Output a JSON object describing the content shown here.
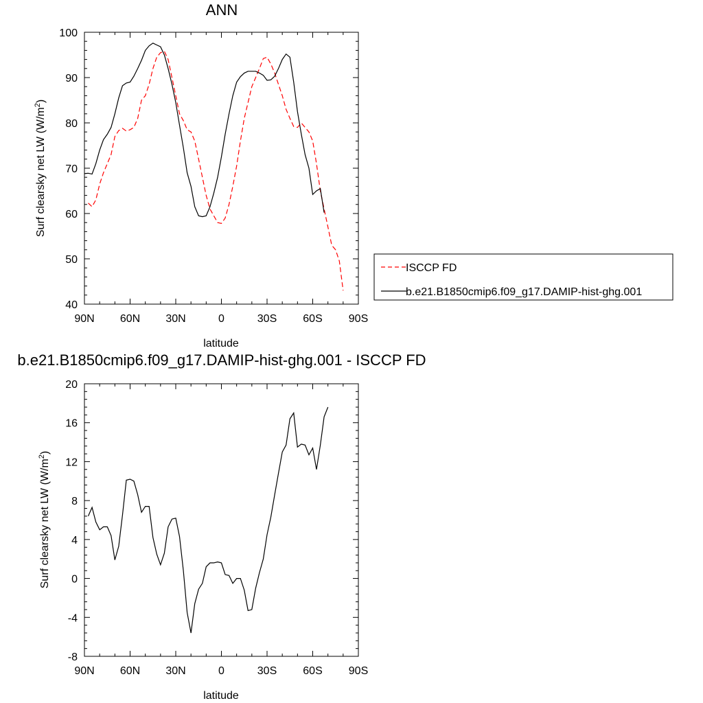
{
  "chart_data": [
    {
      "type": "line",
      "title": "ANN",
      "xlabel": "latitude",
      "ylabel": "Surf clearsky net LW (W/m",
      "ylabel_sup": "2",
      "ylabel_close": ")",
      "xlim": [
        90,
        -90
      ],
      "ylim": [
        40,
        100
      ],
      "x_ticks": [
        {
          "value": 90,
          "label": "90N"
        },
        {
          "value": 60,
          "label": "60N"
        },
        {
          "value": 30,
          "label": "30N"
        },
        {
          "value": 0,
          "label": "0"
        },
        {
          "value": -30,
          "label": "30S"
        },
        {
          "value": -60,
          "label": "60S"
        },
        {
          "value": -90,
          "label": "90S"
        }
      ],
      "y_ticks": [
        {
          "value": 40,
          "label": "40"
        },
        {
          "value": 50,
          "label": "50"
        },
        {
          "value": 60,
          "label": "60"
        },
        {
          "value": 70,
          "label": "70"
        },
        {
          "value": 80,
          "label": "80"
        },
        {
          "value": 90,
          "label": "90"
        },
        {
          "value": 100,
          "label": "100"
        }
      ],
      "legend_position": "right",
      "series": [
        {
          "name": "ISCCP FD",
          "color": "#ff0000",
          "dash": "dashed",
          "points": [
            [
              87.5,
              62.3
            ],
            [
              85,
              61.5
            ],
            [
              82.5,
              63
            ],
            [
              80,
              66.5
            ],
            [
              77.5,
              69
            ],
            [
              75,
              71
            ],
            [
              72.5,
              73
            ],
            [
              70,
              77
            ],
            [
              67.5,
              78.3
            ],
            [
              65,
              78.8
            ],
            [
              62.5,
              78.2
            ],
            [
              60,
              78.5
            ],
            [
              57.5,
              79
            ],
            [
              55,
              81
            ],
            [
              52.5,
              85
            ],
            [
              50,
              86
            ],
            [
              47.5,
              88.5
            ],
            [
              45,
              92
            ],
            [
              42.5,
              94.5
            ],
            [
              40,
              95.5
            ],
            [
              37.5,
              95.8
            ],
            [
              35,
              94
            ],
            [
              32.5,
              90
            ],
            [
              30,
              86
            ],
            [
              27.5,
              82
            ],
            [
              25,
              80.5
            ],
            [
              22.5,
              78.5
            ],
            [
              20,
              78
            ],
            [
              17.5,
              76
            ],
            [
              15,
              72
            ],
            [
              12.5,
              68
            ],
            [
              10,
              64
            ],
            [
              7.5,
              61
            ],
            [
              5,
              59.5
            ],
            [
              2.5,
              58
            ],
            [
              0,
              57.8
            ],
            [
              -2.5,
              59
            ],
            [
              -5,
              62
            ],
            [
              -7.5,
              66
            ],
            [
              -10,
              70.5
            ],
            [
              -12.5,
              76
            ],
            [
              -15,
              81
            ],
            [
              -17.5,
              84.5
            ],
            [
              -20,
              88
            ],
            [
              -22.5,
              90
            ],
            [
              -25,
              92
            ],
            [
              -27.5,
              94.2
            ],
            [
              -30,
              94.5
            ],
            [
              -32.5,
              93
            ],
            [
              -35,
              91
            ],
            [
              -37.5,
              88.5
            ],
            [
              -40,
              86
            ],
            [
              -42.5,
              83
            ],
            [
              -45,
              81
            ],
            [
              -47.5,
              79.2
            ],
            [
              -50,
              79
            ],
            [
              -52.5,
              80
            ],
            [
              -55,
              79
            ],
            [
              -57.5,
              78
            ],
            [
              -60,
              76
            ],
            [
              -62.5,
              71
            ],
            [
              -65,
              65
            ],
            [
              -67.5,
              61
            ],
            [
              -70,
              57
            ],
            [
              -72.5,
              53
            ],
            [
              -75,
              52
            ],
            [
              -77.5,
              49.5
            ],
            [
              -80,
              43
            ]
          ]
        },
        {
          "name": "b.e21.B1850cmip6.f09_g17.DAMIP-hist-ghg.001",
          "color": "#000000",
          "dash": "solid",
          "points": [
            [
              90,
              68.8
            ],
            [
              87.5,
              68.9
            ],
            [
              85,
              68.7
            ],
            [
              82.5,
              71
            ],
            [
              80,
              74
            ],
            [
              77.5,
              76.3
            ],
            [
              75,
              77.5
            ],
            [
              72.5,
              79
            ],
            [
              70,
              82
            ],
            [
              67.5,
              85.5
            ],
            [
              65,
              88.2
            ],
            [
              62.5,
              88.8
            ],
            [
              60,
              89
            ],
            [
              57.5,
              90.3
            ],
            [
              55,
              92
            ],
            [
              52.5,
              93.8
            ],
            [
              50,
              96
            ],
            [
              47.5,
              97
            ],
            [
              45,
              97.6
            ],
            [
              42.5,
              97.2
            ],
            [
              40,
              96.8
            ],
            [
              37.5,
              95
            ],
            [
              35,
              92
            ],
            [
              32.5,
              88.5
            ],
            [
              30,
              84.5
            ],
            [
              27.5,
              79.5
            ],
            [
              25,
              74.5
            ],
            [
              22.5,
              69
            ],
            [
              20,
              66
            ],
            [
              17.5,
              61.5
            ],
            [
              15,
              59.5
            ],
            [
              12.5,
              59.3
            ],
            [
              10,
              59.5
            ],
            [
              7.5,
              61.5
            ],
            [
              5,
              64.5
            ],
            [
              2.5,
              68
            ],
            [
              0,
              72.5
            ],
            [
              -2.5,
              77.5
            ],
            [
              -5,
              82
            ],
            [
              -7.5,
              86
            ],
            [
              -10,
              89
            ],
            [
              -12.5,
              90.2
            ],
            [
              -15,
              91
            ],
            [
              -17.5,
              91.4
            ],
            [
              -20,
              91.4
            ],
            [
              -22.5,
              91.4
            ],
            [
              -25,
              91
            ],
            [
              -27.5,
              90.5
            ],
            [
              -30,
              89.4
            ],
            [
              -32.5,
              89.5
            ],
            [
              -35,
              90.3
            ],
            [
              -37.5,
              92
            ],
            [
              -40,
              94
            ],
            [
              -42.5,
              95.2
            ],
            [
              -45,
              94.5
            ],
            [
              -47.5,
              89
            ],
            [
              -50,
              82.5
            ],
            [
              -52.5,
              77.5
            ],
            [
              -55,
              73
            ],
            [
              -57.5,
              70
            ],
            [
              -60,
              64.2
            ],
            [
              -62.5,
              65
            ],
            [
              -65,
              65.5
            ],
            [
              -67.5,
              60.2
            ]
          ]
        }
      ]
    },
    {
      "type": "line",
      "title": "b.e21.B1850cmip6.f09_g17.DAMIP-hist-ghg.001 - ISCCP FD",
      "xlabel": "latitude",
      "ylabel": "Surf clearsky net LW (W/m",
      "ylabel_sup": "2",
      "ylabel_close": ")",
      "xlim": [
        90,
        -90
      ],
      "ylim": [
        -8,
        20
      ],
      "x_ticks": [
        {
          "value": 90,
          "label": "90N"
        },
        {
          "value": 60,
          "label": "60N"
        },
        {
          "value": 30,
          "label": "30N"
        },
        {
          "value": 0,
          "label": "0"
        },
        {
          "value": -30,
          "label": "30S"
        },
        {
          "value": -60,
          "label": "60S"
        },
        {
          "value": -90,
          "label": "90S"
        }
      ],
      "y_ticks": [
        {
          "value": -8,
          "label": "-8"
        },
        {
          "value": -4,
          "label": "-4"
        },
        {
          "value": 0,
          "label": "0"
        },
        {
          "value": 4,
          "label": "4"
        },
        {
          "value": 8,
          "label": "8"
        },
        {
          "value": 12,
          "label": "12"
        },
        {
          "value": 16,
          "label": "16"
        },
        {
          "value": 20,
          "label": "20"
        }
      ],
      "series": [
        {
          "color": "#000000",
          "dash": "solid",
          "points": [
            [
              87.5,
              6.4
            ],
            [
              85,
              7.3
            ],
            [
              82.5,
              5.8
            ],
            [
              80,
              5.0
            ],
            [
              77.5,
              5.3
            ],
            [
              75,
              5.3
            ],
            [
              72.5,
              4.4
            ],
            [
              70,
              1.9
            ],
            [
              67.5,
              3.3
            ],
            [
              65,
              6.5
            ],
            [
              62.5,
              10.1
            ],
            [
              60,
              10.2
            ],
            [
              57.5,
              10.0
            ],
            [
              55,
              8.6
            ],
            [
              52.5,
              6.8
            ],
            [
              50,
              7.4
            ],
            [
              47.5,
              7.4
            ],
            [
              45,
              4.2
            ],
            [
              42.5,
              2.5
            ],
            [
              40,
              1.4
            ],
            [
              37.5,
              2.6
            ],
            [
              35,
              5.3
            ],
            [
              32.5,
              6.1
            ],
            [
              30,
              6.2
            ],
            [
              27.5,
              4.3
            ],
            [
              25,
              0.8
            ],
            [
              22.5,
              -3.5
            ],
            [
              20,
              -5.6
            ],
            [
              17.5,
              -2.6
            ],
            [
              15,
              -1.1
            ],
            [
              12.5,
              -0.5
            ],
            [
              10,
              1.2
            ],
            [
              7.5,
              1.6
            ],
            [
              5,
              1.6
            ],
            [
              2.5,
              1.7
            ],
            [
              0,
              1.6
            ],
            [
              -2.5,
              0.4
            ],
            [
              -5,
              0.3
            ],
            [
              -7.5,
              -0.5
            ],
            [
              -10,
              0.0
            ],
            [
              -12.5,
              0.0
            ],
            [
              -15,
              -1.2
            ],
            [
              -17.5,
              -3.3
            ],
            [
              -20,
              -3.2
            ],
            [
              -22.5,
              -1.0
            ],
            [
              -25,
              0.6
            ],
            [
              -27.5,
              2.0
            ],
            [
              -30,
              4.5
            ],
            [
              -32.5,
              6.3
            ],
            [
              -35,
              8.6
            ],
            [
              -37.5,
              10.8
            ],
            [
              -40,
              13.0
            ],
            [
              -42.5,
              13.7
            ],
            [
              -45,
              16.4
            ],
            [
              -47.5,
              17.0
            ],
            [
              -50,
              13.5
            ],
            [
              -52.5,
              13.8
            ],
            [
              -55,
              13.7
            ],
            [
              -57.5,
              12.7
            ],
            [
              -60,
              13.4
            ],
            [
              -62.5,
              11.2
            ],
            [
              -65,
              13.7
            ],
            [
              -67.5,
              16.6
            ],
            [
              -70,
              17.6
            ]
          ]
        }
      ]
    }
  ]
}
